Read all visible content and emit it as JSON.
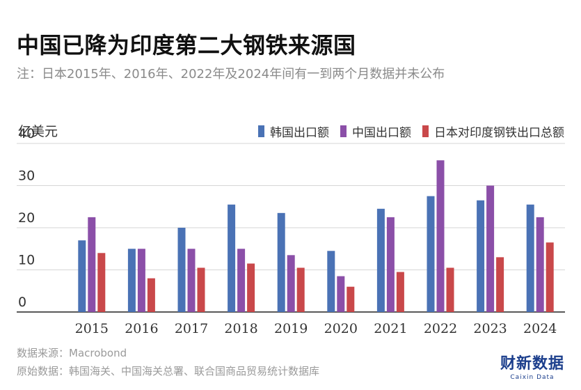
{
  "title": "中国已降为印度第二大钢铁来源国",
  "subtitle": "注：日本2015年、2016年、2022年及2024年间有一到两个月数据并未公布",
  "source_line1": "数据来源：Macrobond",
  "source_line2": "原始数据：韩国海关、中国海关总署、联合国商品贸易统计数据库",
  "logo": {
    "main": "财新数据",
    "sub": "Caixin Data"
  },
  "chart_data": {
    "type": "bar",
    "ylabel": "亿美元",
    "ylim": [
      0,
      40
    ],
    "yticks": [
      0,
      10,
      20,
      30,
      40
    ],
    "categories": [
      "2015",
      "2016",
      "2017",
      "2018",
      "2019",
      "2020",
      "2021",
      "2022",
      "2023",
      "2024"
    ],
    "series": [
      {
        "name": "韩国出口额",
        "color": "#4a72b5",
        "values": [
          17,
          15,
          20,
          25.5,
          23.5,
          14.5,
          24.5,
          27.5,
          26.5,
          25.5
        ]
      },
      {
        "name": "中国出口额",
        "color": "#8b4fa8",
        "values": [
          22.5,
          15,
          15,
          15,
          13.5,
          8.5,
          22.5,
          36,
          30,
          22.5
        ]
      },
      {
        "name": "日本对印度钢铁出口总额",
        "color": "#c9484a",
        "values": [
          14,
          8,
          10.5,
          11.5,
          10.5,
          6,
          9.5,
          10.5,
          13,
          16.5
        ]
      }
    ],
    "grid": true,
    "legend_position": "top-right"
  }
}
